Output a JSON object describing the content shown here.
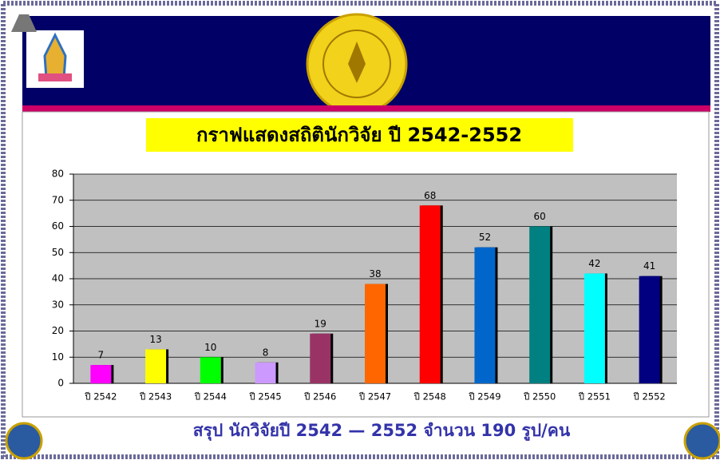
{
  "chart_data": {
    "type": "bar",
    "title": "กราฟแสดงสถิตินักวิจัย ปี 2542-2552",
    "summary": "สรุป นักวิจัยปี 2542 — 2552 จำนวน 190 รูป/คน",
    "categories": [
      "ปี 2542",
      "ปี 2543",
      "ปี 2544",
      "ปี 2545",
      "ปี 2546",
      "ปี 2547",
      "ปี 2548",
      "ปี 2549",
      "ปี 2550",
      "ปี 2551",
      "ปี 2552"
    ],
    "values": [
      7,
      13,
      10,
      8,
      19,
      38,
      68,
      52,
      60,
      42,
      41
    ],
    "colors": [
      "#ff00ff",
      "#ffff00",
      "#00ff00",
      "#cc99ff",
      "#993366",
      "#ff6600",
      "#ff0000",
      "#0066cc",
      "#008080",
      "#00ffff",
      "#000080"
    ],
    "ylim": [
      0,
      80
    ],
    "yticks": [
      0,
      10,
      20,
      30,
      40,
      50,
      60,
      70,
      80
    ],
    "grid": true
  }
}
